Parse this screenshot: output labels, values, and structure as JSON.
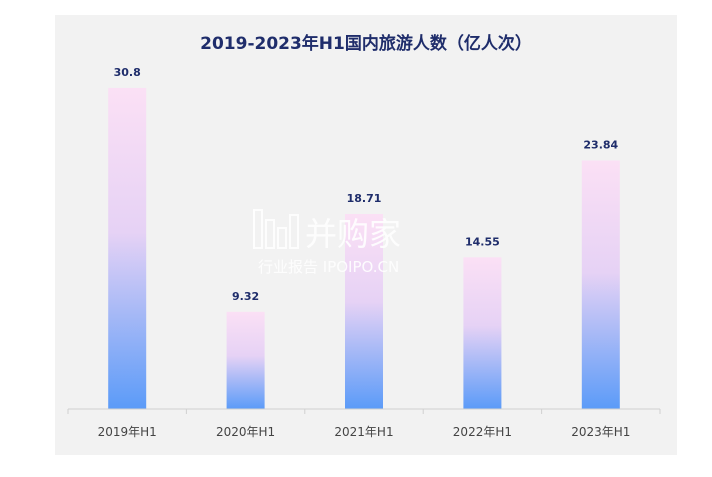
{
  "chart_data": {
    "type": "bar",
    "title": "2019-2023年H1国内旅游人数（亿人次）",
    "categories": [
      "2019年H1",
      "2020年H1",
      "2021年H1",
      "2022年H1",
      "2023年H1"
    ],
    "values": [
      30.8,
      9.32,
      18.71,
      14.55,
      23.84
    ],
    "data_labels": [
      "30.8",
      "9.32",
      "18.71",
      "14.55",
      "23.84"
    ],
    "ylim": [
      0,
      33
    ],
    "grid": false,
    "legend": "none",
    "xlabel": "",
    "ylabel": ""
  },
  "colors": {
    "bar_top": "#fbe0f5",
    "bar_bottom": "#5b9bf8",
    "title": "#1f2d6b",
    "background": "#f2f2f2"
  },
  "watermark": {
    "brand": "并购家",
    "sub": "行业报告 IPOIPO.CN",
    "icon": "bar-chart-icon"
  }
}
